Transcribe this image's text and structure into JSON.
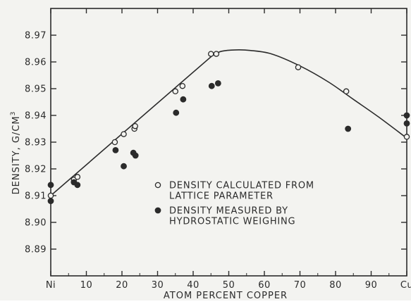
{
  "chart_data": {
    "type": "scatter",
    "xlabel": "ATOM PERCENT COPPER",
    "ylabel": "DENSITY, G/CM",
    "ylabel_superscript": "3",
    "xlim": [
      0,
      100
    ],
    "ylim": [
      8.88,
      8.98
    ],
    "x_ticks": [
      0,
      10,
      20,
      30,
      40,
      50,
      60,
      70,
      80,
      90,
      100
    ],
    "x_tick_labels": [
      "Ni",
      "10",
      "20",
      "30",
      "40",
      "50",
      "60",
      "70",
      "80",
      "90",
      "Cu"
    ],
    "y_ticks": [
      8.89,
      8.9,
      8.91,
      8.92,
      8.93,
      8.94,
      8.95,
      8.96,
      8.97
    ],
    "y_tick_labels": [
      "8.89",
      "8.90",
      "8.91",
      "8.92",
      "8.93",
      "8.94",
      "8.95",
      "8.96",
      "8.97"
    ],
    "grid": false,
    "legend_position": "center-right",
    "series": [
      {
        "name": "DENSITY CALCULATED FROM LATTICE PARAMETER",
        "legend_lines": [
          "DENSITY CALCULATED FROM",
          "LATTICE PARAMETER"
        ],
        "marker": "open-circle",
        "points": [
          [
            0,
            8.91
          ],
          [
            6.5,
            8.916
          ],
          [
            7.5,
            8.917
          ],
          [
            18,
            8.93
          ],
          [
            20.5,
            8.933
          ],
          [
            23.5,
            8.935
          ],
          [
            23.7,
            8.936
          ],
          [
            35,
            8.949
          ],
          [
            37,
            8.951
          ],
          [
            45,
            8.963
          ],
          [
            46.5,
            8.963
          ],
          [
            69.5,
            8.958
          ],
          [
            83,
            8.949
          ],
          [
            100,
            8.932
          ]
        ]
      },
      {
        "name": "DENSITY MEASURED BY HYDROSTATIC WEIGHING",
        "legend_lines": [
          "DENSITY MEASURED BY",
          "HYDROSTATIC WEIGHING"
        ],
        "marker": "filled-circle",
        "points": [
          [
            0,
            8.914
          ],
          [
            0,
            8.908
          ],
          [
            6.5,
            8.915
          ],
          [
            7.5,
            8.914
          ],
          [
            18.2,
            8.927
          ],
          [
            20.5,
            8.921
          ],
          [
            23.2,
            8.926
          ],
          [
            23.8,
            8.925
          ],
          [
            35.2,
            8.941
          ],
          [
            37.2,
            8.946
          ],
          [
            45.2,
            8.951
          ],
          [
            47,
            8.952
          ],
          [
            83.5,
            8.935
          ],
          [
            100,
            8.94
          ],
          [
            100,
            8.937
          ]
        ]
      }
    ],
    "curve": {
      "name": "fitted curve",
      "points": [
        [
          0,
          8.91
        ],
        [
          45.5,
          8.9625
        ],
        [
          48,
          8.964
        ],
        [
          52,
          8.9645
        ],
        [
          56,
          8.9643
        ],
        [
          62,
          8.963
        ],
        [
          70,
          8.9585
        ],
        [
          78,
          8.9525
        ],
        [
          85,
          8.946
        ],
        [
          92,
          8.9395
        ],
        [
          100,
          8.9315
        ]
      ]
    }
  }
}
